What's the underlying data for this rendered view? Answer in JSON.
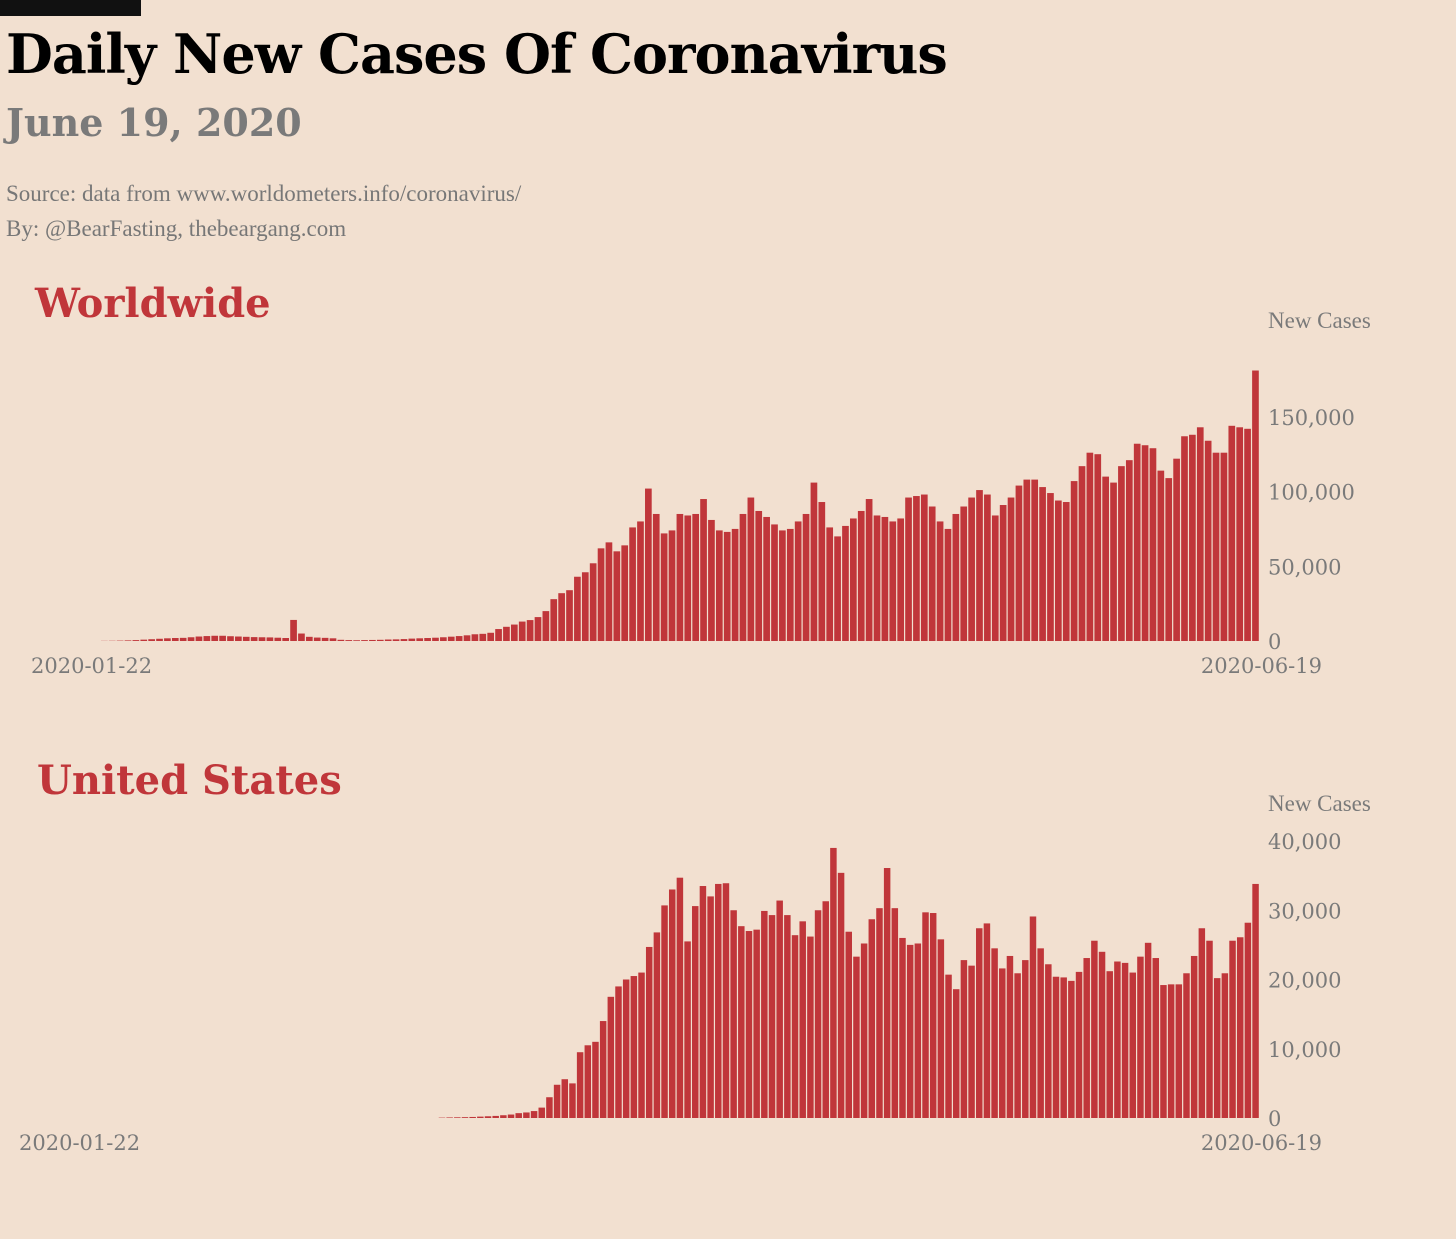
{
  "title": "Daily New Cases Of Coronavirus",
  "subtitle": "June 19, 2020",
  "source": "Source: data from  www.worldometers.info/coronavirus/",
  "byline": "By: @BearFasting, thebeargang.com",
  "colors": {
    "bar": "#c0363a",
    "background": "#f2e0d0",
    "muted_text": "#7a7a7a",
    "heading": "#c0363a"
  },
  "chart_data": [
    {
      "type": "bar",
      "title": "Worldwide",
      "ylabel": "New Cases",
      "ylim": [
        0,
        180000
      ],
      "yticks": [
        0,
        50000,
        100000,
        150000
      ],
      "ytick_labels": [
        "0",
        "50,000",
        "100,000",
        "150,000"
      ],
      "x_start_label": "2020-01-22",
      "x_end_label": "2020-06-19",
      "grid": false,
      "values": [
        100,
        150,
        250,
        400,
        600,
        900,
        1200,
        1500,
        1800,
        2000,
        2100,
        2500,
        3000,
        3300,
        3500,
        3500,
        3200,
        3000,
        2800,
        2600,
        2500,
        2400,
        2200,
        2000,
        14100,
        5000,
        2800,
        2300,
        2100,
        1800,
        800,
        600,
        500,
        600,
        700,
        800,
        1000,
        1100,
        1300,
        1600,
        1800,
        2000,
        2200,
        2500,
        2900,
        3300,
        3800,
        4500,
        4800,
        5500,
        8000,
        9500,
        11000,
        13000,
        14000,
        16000,
        20000,
        28000,
        32000,
        34000,
        43000,
        46000,
        52000,
        62000,
        66000,
        60000,
        64000,
        76000,
        80000,
        102000,
        85000,
        72000,
        74000,
        85000,
        84000,
        85000,
        95000,
        81000,
        74000,
        73000,
        75000,
        85000,
        96000,
        87000,
        83000,
        78000,
        74000,
        75000,
        80000,
        85000,
        106000,
        93000,
        76000,
        70000,
        77000,
        82000,
        87000,
        95000,
        84000,
        83000,
        80000,
        82000,
        96000,
        97000,
        98000,
        90000,
        80000,
        75000,
        85000,
        90000,
        96000,
        101000,
        98000,
        84000,
        91000,
        96000,
        104000,
        108000,
        108000,
        103000,
        99000,
        94000,
        93000,
        107000,
        117000,
        126000,
        125000,
        110000,
        106000,
        117000,
        121000,
        132000,
        131000,
        129000,
        114000,
        109000,
        122000,
        137000,
        138000,
        143000,
        134000,
        126000,
        126000,
        144000,
        143000,
        142000,
        181000
      ]
    },
    {
      "type": "bar",
      "title": "United States",
      "ylabel": "New Cases",
      "ylim": [
        0,
        40000
      ],
      "yticks": [
        0,
        10000,
        20000,
        30000,
        40000
      ],
      "ytick_labels": [
        "0",
        "10,000",
        "20,000",
        "30,000",
        "40,000"
      ],
      "x_start_label": "2020-01-22",
      "x_end_label": "2020-06-19",
      "grid": false,
      "values": [
        0,
        0,
        0,
        0,
        0,
        0,
        0,
        0,
        0,
        0,
        0,
        0,
        0,
        0,
        0,
        0,
        0,
        0,
        0,
        0,
        0,
        0,
        0,
        0,
        0,
        0,
        0,
        0,
        0,
        0,
        0,
        0,
        0,
        0,
        0,
        0,
        0,
        0,
        0,
        0,
        0,
        0,
        0,
        0,
        50,
        80,
        100,
        120,
        150,
        200,
        250,
        300,
        400,
        500,
        700,
        800,
        1000,
        1500,
        3000,
        4800,
        5600,
        5000,
        9500,
        10500,
        11000,
        14000,
        17500,
        19000,
        20000,
        20500,
        21000,
        24700,
        26800,
        30700,
        33000,
        34700,
        25500,
        30600,
        33500,
        32000,
        33800,
        33900,
        30000,
        27700,
        27000,
        27200,
        29900,
        29300,
        31400,
        29300,
        26400,
        28400,
        26200,
        30000,
        31300,
        39000,
        35400,
        26900,
        23300,
        25200,
        28700,
        30300,
        36100,
        30300,
        26000,
        25000,
        25200,
        29700,
        29600,
        25800,
        20700,
        18600,
        22800,
        22000,
        27400,
        28100,
        24500,
        21600,
        23400,
        20900,
        22800,
        29100,
        24500,
        22200,
        20400,
        20300,
        19800,
        21100,
        23100,
        25600,
        24000,
        21200,
        22600,
        22400,
        21000,
        23300,
        25300,
        23100,
        19200,
        19300,
        19300,
        20900,
        23400,
        27400,
        25600,
        20200,
        20900,
        25600,
        26100,
        28200,
        33800
      ]
    }
  ]
}
